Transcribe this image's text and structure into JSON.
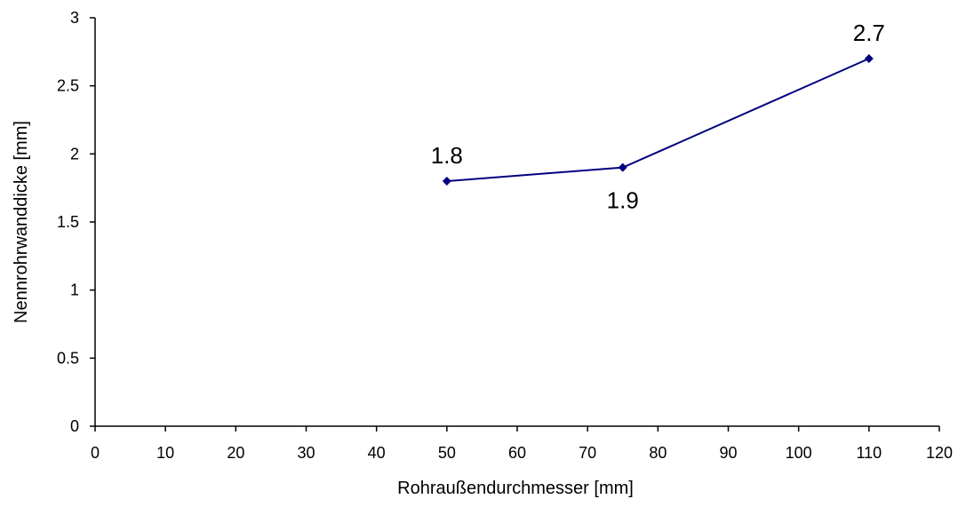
{
  "chart_data": {
    "type": "line",
    "title": "",
    "xlabel": "Rohraußendurchmesser [mm]",
    "ylabel": "Nennrohrwanddicke [mm]",
    "xlim": [
      0,
      120
    ],
    "ylim": [
      0,
      3
    ],
    "xticks": [
      0,
      10,
      20,
      30,
      40,
      50,
      60,
      70,
      80,
      90,
      100,
      110,
      120
    ],
    "yticks": [
      0,
      0.5,
      1,
      1.5,
      2,
      2.5,
      3
    ],
    "grid": false,
    "legend": "none",
    "series": [
      {
        "color": "#000080",
        "marker": "diamond",
        "x": [
          50,
          75,
          110
        ],
        "y": [
          1.8,
          1.9,
          2.7
        ],
        "data_labels": [
          "1.8",
          "1.9",
          "2.7"
        ],
        "label_positions": [
          "above",
          "below",
          "above"
        ]
      }
    ]
  }
}
